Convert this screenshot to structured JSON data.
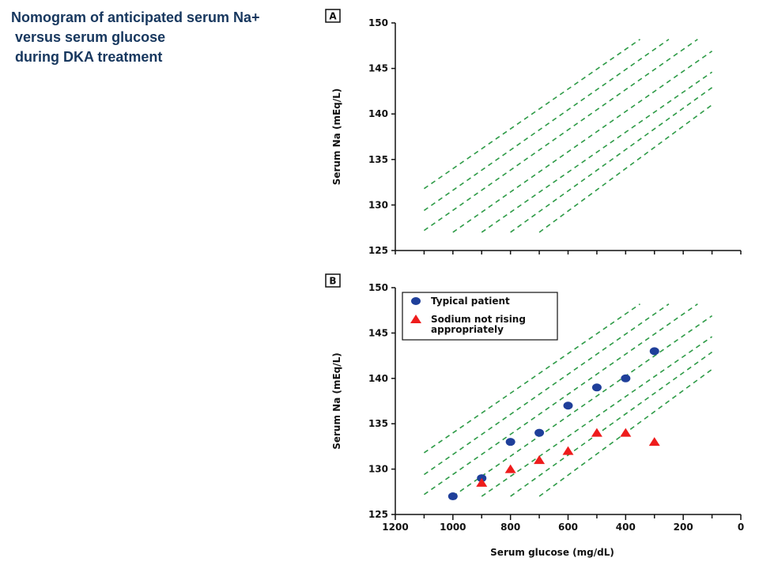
{
  "title_lines": [
    "Nomogram of anticipated serum Na+",
    " versus serum glucose",
    " during DKA treatment"
  ],
  "colors": {
    "title": "#17375e",
    "guide_lines": "#2e9b47",
    "typical_patient": "#1f3f9a",
    "sodium_not_rising": "#ee1c1c",
    "axis": "#111111"
  },
  "chart_data": [
    {
      "panel": "A",
      "type": "line",
      "ylabel": "Serum Na (mEq/L)",
      "xlabel": "",
      "ylim": [
        125,
        150
      ],
      "xlim": [
        1200,
        0
      ],
      "x_reversed": true,
      "x_ticks": [],
      "y_ticks": [
        125,
        130,
        135,
        140,
        145,
        150
      ],
      "grid": false,
      "guide_line_style": "dashed",
      "guide_lines": [
        {
          "x": [
            1100,
            350
          ],
          "y": [
            131.8,
            148.2
          ]
        },
        {
          "x": [
            1100,
            250
          ],
          "y": [
            129.4,
            148.2
          ]
        },
        {
          "x": [
            1100,
            150
          ],
          "y": [
            127.2,
            148.2
          ]
        },
        {
          "x": [
            1000,
            100
          ],
          "y": [
            127.0,
            146.9
          ]
        },
        {
          "x": [
            900,
            100
          ],
          "y": [
            127.0,
            144.6
          ]
        },
        {
          "x": [
            800,
            100
          ],
          "y": [
            127.0,
            142.9
          ]
        },
        {
          "x": [
            700,
            100
          ],
          "y": [
            127.0,
            141.0
          ]
        }
      ]
    },
    {
      "panel": "B",
      "type": "scatter",
      "ylabel": "Serum Na (mEq/L)",
      "xlabel": "Serum glucose (mg/dL)",
      "ylim": [
        125,
        150
      ],
      "xlim": [
        1200,
        0
      ],
      "x_reversed": true,
      "x_ticks": [
        1200,
        1000,
        800,
        600,
        400,
        200,
        0
      ],
      "y_ticks": [
        125,
        130,
        135,
        140,
        145,
        150
      ],
      "grid": false,
      "legend_position": "top-left",
      "guide_line_style": "dashed",
      "guide_lines": [
        {
          "x": [
            1100,
            350
          ],
          "y": [
            131.8,
            148.2
          ]
        },
        {
          "x": [
            1100,
            250
          ],
          "y": [
            129.4,
            148.2
          ]
        },
        {
          "x": [
            1100,
            150
          ],
          "y": [
            127.2,
            148.2
          ]
        },
        {
          "x": [
            1000,
            100
          ],
          "y": [
            127.0,
            146.9
          ]
        },
        {
          "x": [
            900,
            100
          ],
          "y": [
            127.0,
            144.6
          ]
        },
        {
          "x": [
            800,
            100
          ],
          "y": [
            127.0,
            142.9
          ]
        },
        {
          "x": [
            700,
            100
          ],
          "y": [
            127.0,
            141.0
          ]
        }
      ],
      "series": [
        {
          "name": "Typical patient",
          "marker": "circle",
          "x": [
            1000,
            900,
            800,
            700,
            600,
            500,
            400,
            300
          ],
          "y": [
            127.0,
            129.0,
            133.0,
            134.0,
            137.0,
            139.0,
            140.0,
            143.0
          ]
        },
        {
          "name": "Sodium not rising appropriately",
          "legend_lines": [
            "Sodium not rising",
            "appropriately"
          ],
          "marker": "triangle",
          "x": [
            900,
            800,
            700,
            600,
            500,
            400,
            300
          ],
          "y": [
            128.5,
            130.0,
            131.0,
            132.0,
            134.0,
            134.0,
            133.0
          ]
        }
      ]
    }
  ]
}
